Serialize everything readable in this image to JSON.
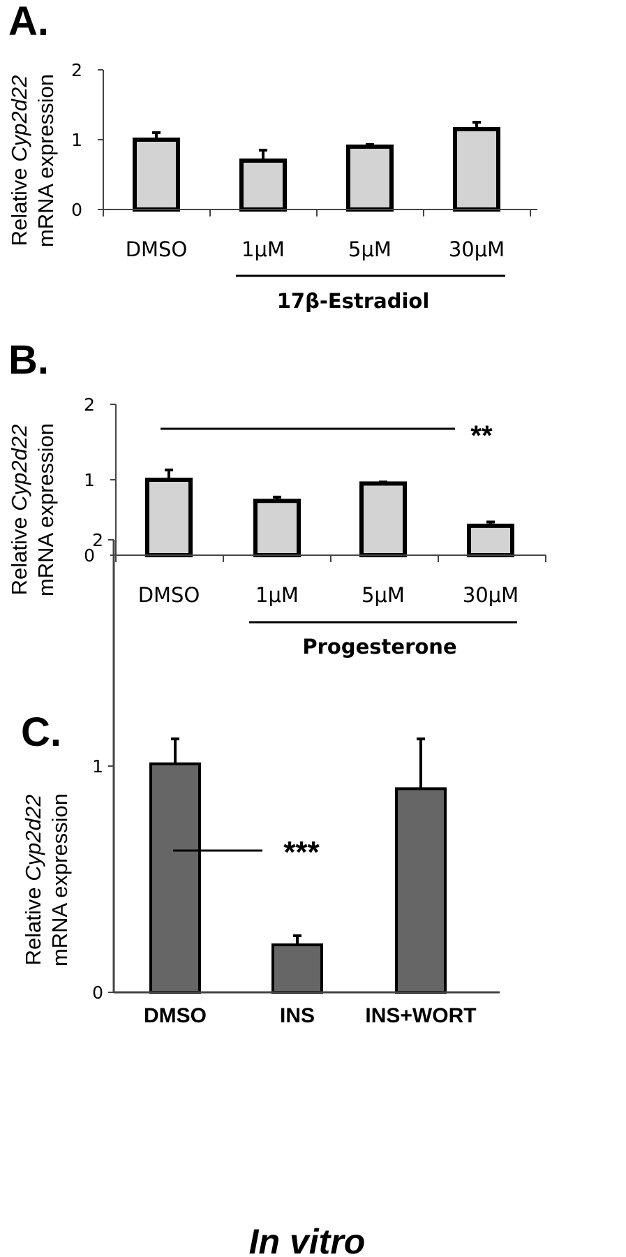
{
  "chart_data": [
    {
      "type": "bar",
      "panel_label": "A.",
      "ylabel_prefix": "Relative ",
      "ylabel_gene": "Cyp2d22",
      "ylabel_line2": "mRNA expression",
      "ylim": [
        0,
        2
      ],
      "yticks": [
        "0",
        "1",
        "2"
      ],
      "categories": [
        "DMSO",
        "1μM",
        "5μM",
        "30μM"
      ],
      "values": [
        1.0,
        0.7,
        0.9,
        1.15
      ],
      "errors": [
        0.1,
        0.15,
        0.03,
        0.1
      ],
      "group_label": "17β-Estradiol",
      "significance": null,
      "bar_color": "#d3d3d3",
      "grid": false
    },
    {
      "type": "bar",
      "panel_label": "B.",
      "ylabel_prefix": "Relative ",
      "ylabel_gene": "Cyp2d22",
      "ylabel_line2": "mRNA expression",
      "ylim": [
        0,
        2
      ],
      "yticks": [
        "0",
        "1",
        "2"
      ],
      "categories": [
        "DMSO",
        "1μM",
        "5μM",
        "30μM"
      ],
      "values": [
        1.0,
        0.72,
        0.95,
        0.39
      ],
      "errors": [
        0.13,
        0.05,
        0.02,
        0.05
      ],
      "group_label": "Progesterone",
      "significance": "**",
      "bar_color": "#d3d3d3",
      "grid": false
    },
    {
      "type": "bar",
      "panel_label": "C.",
      "ylabel_prefix": "Relative ",
      "ylabel_gene": "Cyp2d22",
      "ylabel_line2": "mRNA expression",
      "ylim": [
        0,
        2
      ],
      "yticks": [
        "0",
        "1",
        "2"
      ],
      "categories": [
        "DMSO",
        "INS",
        "INS+WORT"
      ],
      "values": [
        1.01,
        0.21,
        0.9
      ],
      "errors": [
        0.11,
        0.04,
        0.22
      ],
      "group_label": null,
      "significance": "***",
      "bar_color": "#666666",
      "grid": false
    }
  ],
  "footer": "In vitro"
}
